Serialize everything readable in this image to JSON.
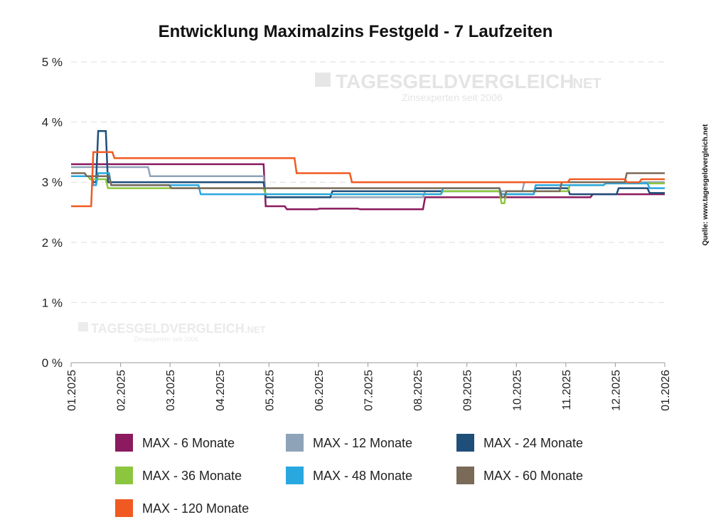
{
  "chart_data": {
    "type": "line",
    "title": "Entwicklung Maximalzins Festgeld - 7 Laufzeiten",
    "source": "Quelle: www.tagesgeldvergleich.net",
    "watermark": {
      "brand": "TAGESGELDVERGLEICH",
      "tld": ".NET",
      "slogan": "Zinsexperten seit 2006"
    },
    "xlim": [
      "2025-01-01",
      "2026-01-01"
    ],
    "x_ticks": [
      "01.2025",
      "02.2025",
      "03.2025",
      "04.2025",
      "05.2025",
      "06.2025",
      "07.2025",
      "08.2025",
      "09.2025",
      "10.2025",
      "11.2025",
      "12.2025",
      "01.2026"
    ],
    "ylim": [
      0,
      5
    ],
    "y_ticks": [
      {
        "value": 0,
        "label": "0 %"
      },
      {
        "value": 1,
        "label": "1 %"
      },
      {
        "value": 2,
        "label": "2 %"
      },
      {
        "value": 3,
        "label": "3 %"
      },
      {
        "value": 4,
        "label": "4 %"
      },
      {
        "value": 5,
        "label": "5 %"
      }
    ],
    "grid": "horizontal-dashed",
    "legend_placement": "bottom",
    "line_shape": "step",
    "series": [
      {
        "name": "MAX - 6 Monate",
        "color": "#8b1a5e",
        "steps": [
          [
            "2025-01-01",
            3.3
          ],
          [
            "2025-04-30",
            2.6
          ],
          [
            "2025-05-13",
            2.55
          ],
          [
            "2025-06-02",
            2.56
          ],
          [
            "2025-06-27",
            2.55
          ],
          [
            "2025-08-06",
            2.75
          ],
          [
            "2025-11-17",
            2.8
          ]
        ]
      },
      {
        "name": "MAX - 12 Monate",
        "color": "#8fa3b8",
        "steps": [
          [
            "2025-01-01",
            3.25
          ],
          [
            "2025-02-18",
            3.1
          ],
          [
            "2025-04-30",
            2.75
          ],
          [
            "2025-08-06",
            2.85
          ],
          [
            "2025-10-06",
            3.0
          ]
        ]
      },
      {
        "name": "MAX - 24 Monate",
        "color": "#1f4e79",
        "steps": [
          [
            "2025-01-01",
            3.1
          ],
          [
            "2025-01-14",
            3.0
          ],
          [
            "2025-01-17",
            3.85
          ],
          [
            "2025-01-23",
            3.0
          ],
          [
            "2025-04-30",
            2.75
          ],
          [
            "2025-06-10",
            2.85
          ],
          [
            "2025-09-22",
            2.8
          ],
          [
            "2025-10-13",
            2.9
          ],
          [
            "2025-11-03",
            2.8
          ],
          [
            "2025-12-03",
            2.9
          ],
          [
            "2025-12-22",
            2.82
          ]
        ]
      },
      {
        "name": "MAX - 36 Monate",
        "color": "#8cc63f",
        "steps": [
          [
            "2025-01-01",
            3.1
          ],
          [
            "2025-01-12",
            3.05
          ],
          [
            "2025-01-23",
            2.9
          ],
          [
            "2025-04-30",
            2.8
          ],
          [
            "2025-08-17",
            2.85
          ],
          [
            "2025-09-22",
            2.65
          ],
          [
            "2025-09-25",
            2.85
          ],
          [
            "2025-11-03",
            2.95
          ],
          [
            "2025-11-25",
            2.98
          ]
        ]
      },
      {
        "name": "MAX - 48 Monate",
        "color": "#29a8e0",
        "steps": [
          [
            "2025-01-01",
            3.1
          ],
          [
            "2025-01-14",
            2.95
          ],
          [
            "2025-01-17",
            3.15
          ],
          [
            "2025-01-25",
            2.95
          ],
          [
            "2025-03-21",
            2.8
          ],
          [
            "2025-04-30",
            2.8
          ],
          [
            "2025-08-17",
            2.9
          ],
          [
            "2025-09-22",
            2.8
          ],
          [
            "2025-10-13",
            2.95
          ],
          [
            "2025-11-25",
            2.98
          ],
          [
            "2025-12-22",
            2.9
          ]
        ]
      },
      {
        "name": "MAX - 60 Monate",
        "color": "#7a6a58",
        "steps": [
          [
            "2025-01-01",
            3.15
          ],
          [
            "2025-01-10",
            3.1
          ],
          [
            "2025-01-25",
            2.95
          ],
          [
            "2025-03-03",
            2.9
          ],
          [
            "2025-09-22",
            2.75
          ],
          [
            "2025-09-25",
            2.85
          ],
          [
            "2025-10-29",
            3.0
          ],
          [
            "2025-12-08",
            3.15
          ]
        ]
      },
      {
        "name": "MAX - 120 Monate",
        "color": "#f05a22",
        "steps": [
          [
            "2025-01-01",
            2.6
          ],
          [
            "2025-01-14",
            3.5
          ],
          [
            "2025-01-27",
            3.4
          ],
          [
            "2025-05-19",
            3.15
          ],
          [
            "2025-06-22",
            3.0
          ],
          [
            "2025-11-03",
            3.05
          ],
          [
            "2025-12-08",
            3.0
          ],
          [
            "2025-12-17",
            3.05
          ]
        ]
      }
    ]
  }
}
